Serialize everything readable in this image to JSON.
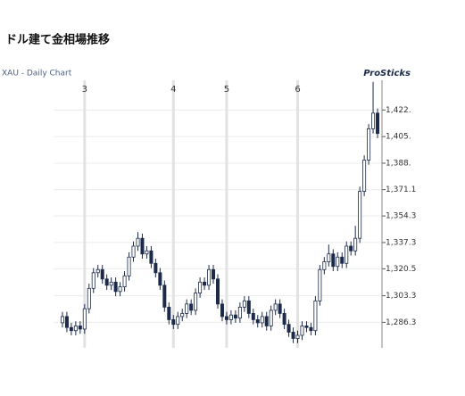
{
  "chart_data": {
    "type": "candlestick",
    "title": "ドル建て金相場推移",
    "subtitle": "XAU - Daily Chart",
    "brand": "ProSticks",
    "color": "#1c2b4a",
    "open": [
      1286,
      1290,
      1283,
      1281,
      1284,
      1282,
      1295,
      1308,
      1318,
      1320,
      1314,
      1310,
      1312,
      1306,
      1309,
      1316,
      1328,
      1335,
      1340,
      1330,
      1332,
      1324,
      1318,
      1310,
      1296,
      1288,
      1285,
      1290,
      1292,
      1298,
      1294,
      1305,
      1312,
      1310,
      1320,
      1314,
      1298,
      1290,
      1288,
      1291,
      1289,
      1296,
      1300,
      1292,
      1288,
      1286,
      1290,
      1284,
      1294,
      1298,
      1292,
      1285,
      1280,
      1276,
      1278,
      1284,
      1283,
      1281,
      1300,
      1320,
      1325,
      1330,
      1322,
      1328,
      1324,
      1335,
      1332,
      1340,
      1370,
      1390,
      1410,
      1420
    ],
    "high": [
      1293,
      1293,
      1286,
      1287,
      1287,
      1298,
      1311,
      1321,
      1323,
      1323,
      1317,
      1315,
      1315,
      1312,
      1319,
      1331,
      1338,
      1344,
      1343,
      1335,
      1335,
      1327,
      1321,
      1313,
      1299,
      1291,
      1293,
      1295,
      1301,
      1301,
      1308,
      1315,
      1315,
      1323,
      1323,
      1317,
      1301,
      1293,
      1294,
      1294,
      1299,
      1303,
      1303,
      1295,
      1291,
      1293,
      1293,
      1297,
      1301,
      1301,
      1295,
      1288,
      1283,
      1281,
      1287,
      1287,
      1286,
      1303,
      1323,
      1328,
      1336,
      1333,
      1331,
      1331,
      1338,
      1338,
      1348,
      1373,
      1393,
      1413,
      1440,
      1423
    ],
    "low": [
      1283,
      1280,
      1278,
      1278,
      1279,
      1279,
      1292,
      1305,
      1315,
      1311,
      1307,
      1307,
      1303,
      1303,
      1306,
      1313,
      1325,
      1332,
      1327,
      1327,
      1321,
      1315,
      1307,
      1293,
      1285,
      1282,
      1282,
      1287,
      1289,
      1291,
      1291,
      1302,
      1307,
      1307,
      1311,
      1295,
      1287,
      1285,
      1285,
      1286,
      1286,
      1293,
      1289,
      1285,
      1283,
      1283,
      1281,
      1281,
      1291,
      1289,
      1282,
      1277,
      1273,
      1273,
      1275,
      1280,
      1278,
      1278,
      1297,
      1317,
      1322,
      1319,
      1319,
      1321,
      1321,
      1329,
      1329,
      1337,
      1367,
      1387,
      1407,
      1404
    ],
    "close": [
      1290,
      1283,
      1281,
      1284,
      1282,
      1295,
      1308,
      1318,
      1320,
      1314,
      1310,
      1312,
      1306,
      1309,
      1316,
      1328,
      1335,
      1340,
      1330,
      1332,
      1324,
      1318,
      1310,
      1296,
      1288,
      1285,
      1290,
      1292,
      1298,
      1294,
      1305,
      1312,
      1310,
      1320,
      1314,
      1298,
      1290,
      1288,
      1291,
      1289,
      1296,
      1300,
      1292,
      1288,
      1286,
      1290,
      1284,
      1294,
      1298,
      1292,
      1285,
      1280,
      1276,
      1278,
      1284,
      1283,
      1281,
      1300,
      1320,
      1325,
      1330,
      1322,
      1328,
      1324,
      1335,
      1332,
      1340,
      1370,
      1390,
      1410,
      1420,
      1407
    ],
    "xlim": [
      -2,
      72
    ],
    "xticks": [
      {
        "value": 5,
        "label": "3"
      },
      {
        "value": 25,
        "label": "4"
      },
      {
        "value": 37,
        "label": "5"
      },
      {
        "value": 53,
        "label": "6"
      }
    ],
    "ylim": [
      1270,
      1441
    ],
    "yticks": [
      {
        "value": 1422,
        "label": "1,422."
      },
      {
        "value": 1405,
        "label": "1,405."
      },
      {
        "value": 1388,
        "label": "1,388."
      },
      {
        "value": 1371.1,
        "label": "1,371.1"
      },
      {
        "value": 1354.3,
        "label": "1,354.3"
      },
      {
        "value": 1337.3,
        "label": "1,337.3"
      },
      {
        "value": 1320.5,
        "label": "1,320.5"
      },
      {
        "value": 1303.3,
        "label": "1,303.3"
      },
      {
        "value": 1286.3,
        "label": "1,286.3"
      }
    ],
    "grid": true
  }
}
